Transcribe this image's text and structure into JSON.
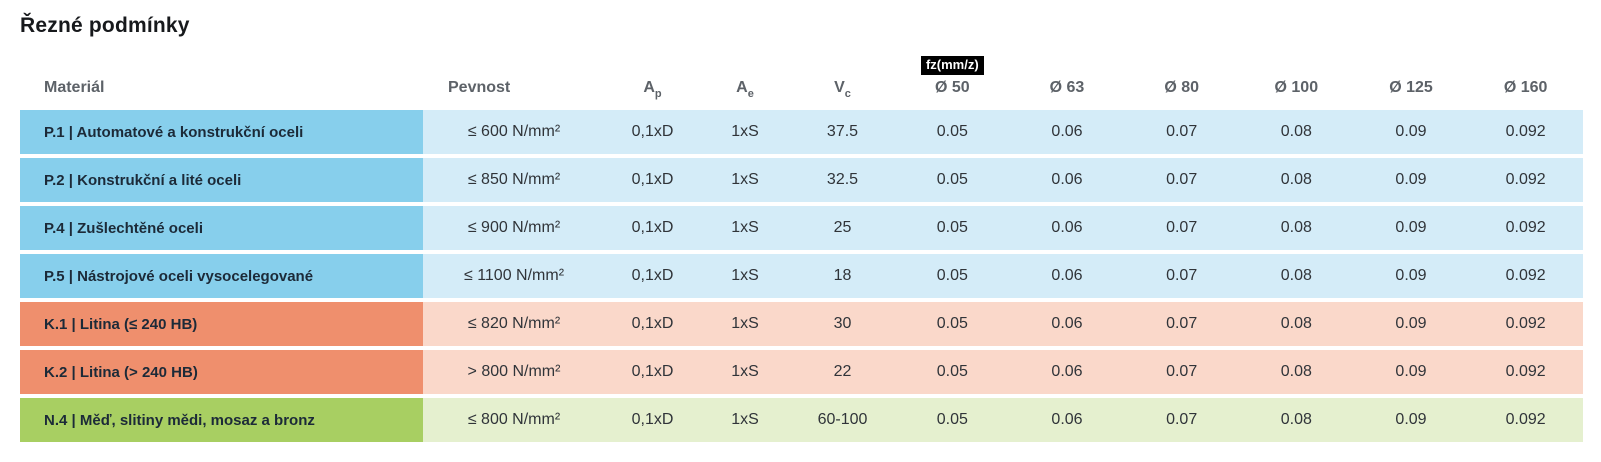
{
  "title": "Řezné podmínky",
  "colors": {
    "steel_strong": "#87cfec",
    "steel_light": "#d4ecf8",
    "cast_iron_strong": "#ef8f6d",
    "cast_iron_light": "#fad8ca",
    "non_ferrous_strong": "#a8cf62",
    "non_ferrous_light": "#e5f0cf",
    "badge_bg": "#000000",
    "badge_text": "#ffffff"
  },
  "table": {
    "fz_badge_label": "fz(mm/z)",
    "headers": {
      "material": "Materiál",
      "strength": "Pevnost",
      "ap": {
        "base": "A",
        "sub": "p"
      },
      "ae": {
        "base": "A",
        "sub": "e"
      },
      "vc": {
        "base": "V",
        "sub": "c"
      },
      "diameters": [
        "Ø 50",
        "Ø 63",
        "Ø 80",
        "Ø 100",
        "Ø 125",
        "Ø 160"
      ]
    },
    "rows": [
      {
        "group": "steel",
        "material": "P.1 | Automatové a konstrukční oceli",
        "strength": "≤ 600 N/mm²",
        "ap": "0,1xD",
        "ae": "1xS",
        "vc": "37.5",
        "fz": [
          "0.05",
          "0.06",
          "0.07",
          "0.08",
          "0.09",
          "0.092"
        ]
      },
      {
        "group": "steel",
        "material": "P.2 | Konstrukční a lité oceli",
        "strength": "≤ 850 N/mm²",
        "ap": "0,1xD",
        "ae": "1xS",
        "vc": "32.5",
        "fz": [
          "0.05",
          "0.06",
          "0.07",
          "0.08",
          "0.09",
          "0.092"
        ]
      },
      {
        "group": "steel",
        "material": "P.4 | Zušlechtěné oceli",
        "strength": "≤ 900 N/mm²",
        "ap": "0,1xD",
        "ae": "1xS",
        "vc": "25",
        "fz": [
          "0.05",
          "0.06",
          "0.07",
          "0.08",
          "0.09",
          "0.092"
        ]
      },
      {
        "group": "steel",
        "material": "P.5 | Nástrojové oceli vysocelegované",
        "strength": "≤ 1100 N/mm²",
        "ap": "0,1xD",
        "ae": "1xS",
        "vc": "18",
        "fz": [
          "0.05",
          "0.06",
          "0.07",
          "0.08",
          "0.09",
          "0.092"
        ]
      },
      {
        "group": "cast_iron",
        "material": "K.1 | Litina (≤ 240 HB)",
        "strength": "≤ 820 N/mm²",
        "ap": "0,1xD",
        "ae": "1xS",
        "vc": "30",
        "fz": [
          "0.05",
          "0.06",
          "0.07",
          "0.08",
          "0.09",
          "0.092"
        ]
      },
      {
        "group": "cast_iron",
        "material": "K.2 | Litina (> 240 HB)",
        "strength": "> 800 N/mm²",
        "ap": "0,1xD",
        "ae": "1xS",
        "vc": "22",
        "fz": [
          "0.05",
          "0.06",
          "0.07",
          "0.08",
          "0.09",
          "0.092"
        ]
      },
      {
        "group": "non_ferrous",
        "material": "N.4 | Měď, slitiny mědi, mosaz a bronz",
        "strength": "≤ 800 N/mm²",
        "ap": "0,1xD",
        "ae": "1xS",
        "vc": "60-100",
        "fz": [
          "0.05",
          "0.06",
          "0.07",
          "0.08",
          "0.09",
          "0.092"
        ]
      }
    ]
  }
}
